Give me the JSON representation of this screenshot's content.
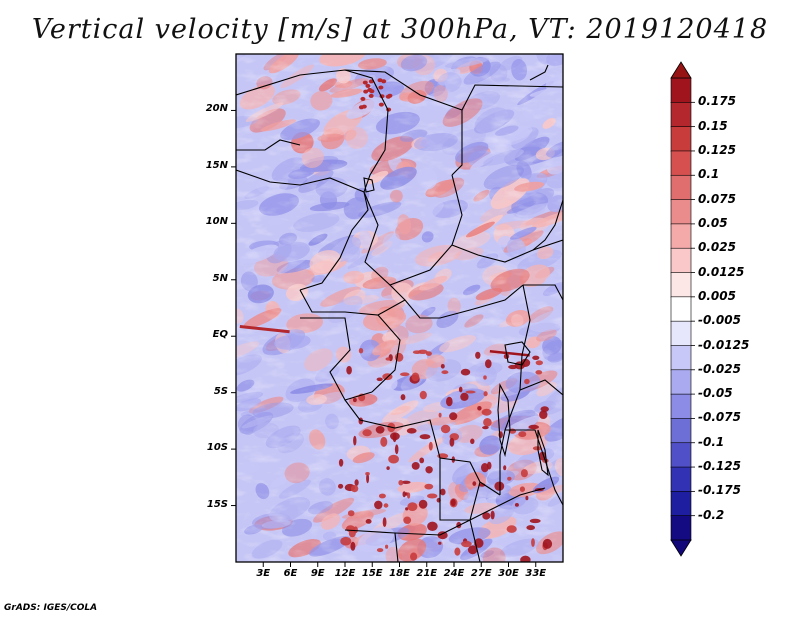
{
  "title": "Vertical velocity [m/s] at 300hPa, VT: 2019120418",
  "footer": "GrADS: IGES/COLA",
  "map": {
    "variable": "Vertical velocity",
    "units": "m/s",
    "level": "300hPa",
    "valid_time": "2019120418",
    "lat_range": [
      -20,
      25
    ],
    "lon_range": [
      0,
      36
    ],
    "lat_ticks": [
      "20N",
      "15N",
      "10N",
      "5N",
      "EQ",
      "5S",
      "10S",
      "15S"
    ],
    "lon_ticks": [
      "3E",
      "6E",
      "9E",
      "12E",
      "15E",
      "18E",
      "21E",
      "24E",
      "27E",
      "30E",
      "33E"
    ]
  },
  "colorbar": {
    "labels": [
      "0.175",
      "0.15",
      "0.125",
      "0.1",
      "0.075",
      "0.05",
      "0.025",
      "0.0125",
      "0.005",
      "-0.005",
      "-0.0125",
      "-0.025",
      "-0.05",
      "-0.075",
      "-0.1",
      "-0.125",
      "-0.175",
      "-0.2"
    ],
    "colors": [
      "#a0141e",
      "#b4282d",
      "#c83c3c",
      "#d75050",
      "#e16e6e",
      "#eb8c8c",
      "#f5aaaa",
      "#fac8c8",
      "#fde6e6",
      "#ffffff",
      "#e6e6fc",
      "#c8c8f8",
      "#aaaaf0",
      "#8c8ce6",
      "#6e6ed7",
      "#5050c8",
      "#3232b4",
      "#1e1ea0",
      "#140a82"
    ],
    "top_arrow_color": "#961414",
    "bottom_arrow_color": "#12087a"
  }
}
